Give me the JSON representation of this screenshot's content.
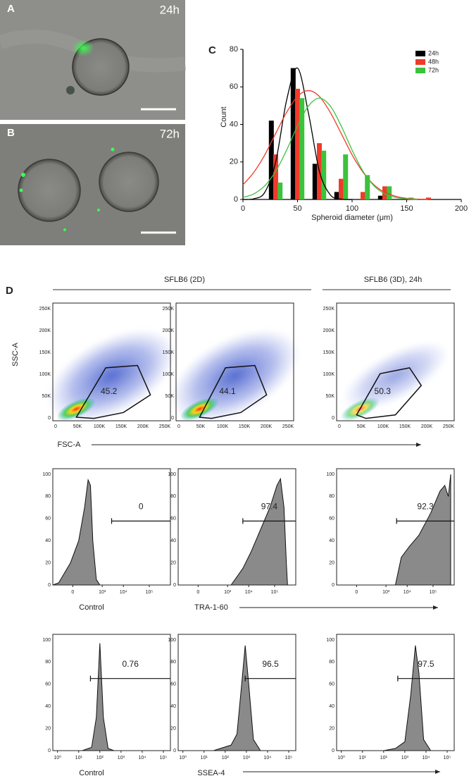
{
  "panels": {
    "a": {
      "label": "A",
      "time": "24h"
    },
    "b": {
      "label": "B",
      "time": "72h"
    }
  },
  "chart_data": {
    "type": "bar",
    "panel_label": "C",
    "x_label": "Spheroid diameter (μm)",
    "y_label": "Count",
    "xlim": [
      0,
      200
    ],
    "xticks": [
      0,
      50,
      100,
      150,
      200
    ],
    "ylim": [
      0,
      80
    ],
    "yticks": [
      0,
      20,
      40,
      60,
      80
    ],
    "legend": "top-right",
    "series": [
      {
        "name": "24h",
        "color": "#000000",
        "x": [
          26,
          46,
          66,
          86,
          126
        ],
        "values": [
          42,
          70,
          19,
          4,
          2
        ]
      },
      {
        "name": "48h",
        "color": "#f03a2a",
        "x": [
          30,
          50,
          70,
          90,
          110,
          130,
          170
        ],
        "values": [
          24,
          59,
          30,
          11,
          4,
          7,
          1
        ]
      },
      {
        "name": "72h",
        "color": "#3cc23c",
        "x": [
          34,
          54,
          74,
          94,
          114,
          134,
          154
        ],
        "values": [
          9,
          54,
          26,
          24,
          13,
          7,
          1
        ]
      },
      {
        "type": "line",
        "color": "#000000",
        "x": [
          0,
          10,
          20,
          30,
          40,
          50,
          60,
          70,
          80,
          90,
          100
        ],
        "values": [
          0,
          0.4,
          3.8,
          20,
          52.9,
          70,
          46,
          15.1,
          2.5,
          0.2,
          0
        ]
      },
      {
        "type": "line",
        "color": "#f03a2a",
        "x": [
          0,
          10,
          20,
          30,
          40,
          50,
          60,
          70,
          80,
          90,
          100,
          110,
          120,
          130,
          140,
          150,
          160,
          170
        ],
        "values": [
          7.8,
          14.5,
          23.8,
          35.2,
          46.4,
          54.9,
          58,
          54.9,
          46.4,
          35.2,
          23.8,
          14.5,
          7.8,
          3.8,
          1.7,
          0.6,
          0.2,
          0.1
        ]
      },
      {
        "type": "line",
        "color": "#3cc23c",
        "x": [
          0,
          10,
          20,
          30,
          40,
          50,
          60,
          70,
          80,
          90,
          100,
          110,
          120,
          130,
          140,
          150,
          160
        ],
        "values": [
          1.1,
          3,
          7.3,
          15,
          26.3,
          39.2,
          49.8,
          54,
          49.8,
          39.2,
          26.3,
          15,
          7.3,
          3,
          1.1,
          0.3,
          0.1
        ]
      }
    ]
  },
  "flow": {
    "label": "D",
    "groups": [
      "SFLB6 (2D)",
      "SFLB6 (3D), 24h"
    ],
    "scatter": {
      "y_label": "SSC-A",
      "x_label": "FSC-A",
      "ticks": [
        "0",
        "50K",
        "100K",
        "150K",
        "200K",
        "250K"
      ],
      "gates": [
        "45.2",
        "44.1",
        "50.3"
      ]
    },
    "hist_yticks": [
      0,
      20,
      40,
      60,
      80,
      100
    ],
    "rows": [
      {
        "xticks": [
          "0",
          "10³",
          "10⁴",
          "10⁵"
        ],
        "gates": [
          "0",
          "97.4",
          "92.3"
        ],
        "labels": [
          "Control",
          "TRA-1-60"
        ]
      },
      {
        "xticks": [
          "10⁰",
          "10¹",
          "10²",
          "10³",
          "10⁴",
          "10⁵"
        ],
        "gates": [
          "0.76",
          "96.5",
          "97.5"
        ],
        "labels": [
          "Control",
          "SSEA-4"
        ]
      }
    ]
  }
}
